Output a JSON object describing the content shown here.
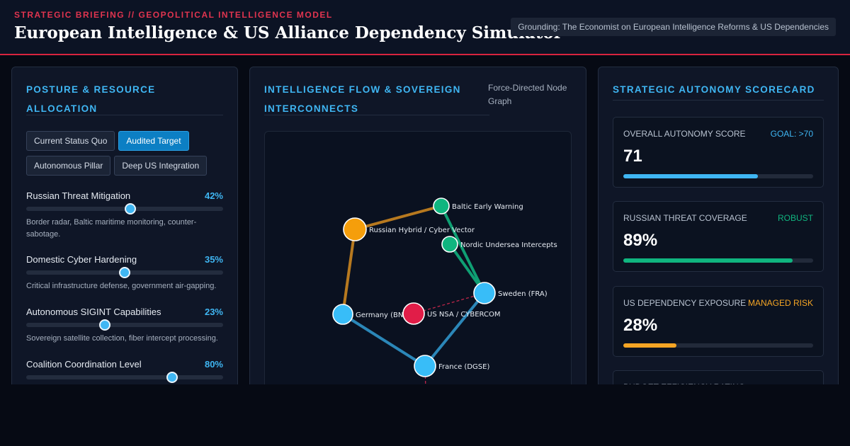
{
  "header": {
    "kicker": "STRATEGIC BRIEFING // GEOPOLITICAL INTELLIGENCE MODEL",
    "title": "European Intelligence & US Alliance Dependency Simulator",
    "grounding": "Grounding: The Economist on European Intelligence Reforms & US Dependencies"
  },
  "posture": {
    "title": "POSTURE & RESOURCE ALLOCATION",
    "scenarios": [
      {
        "label": "Current Status Quo",
        "active": false
      },
      {
        "label": "Audited Target",
        "active": true
      },
      {
        "label": "Autonomous Pillar",
        "active": false
      },
      {
        "label": "Deep US Integration",
        "active": false
      }
    ],
    "sliders": [
      {
        "label": "Russian Threat Mitigation",
        "value_text": "42%",
        "level": 0.53,
        "description": "Border radar, Baltic maritime monitoring, counter-sabotage."
      },
      {
        "label": "Domestic Cyber Hardening",
        "value_text": "35%",
        "level": 0.5,
        "description": "Critical infrastructure defense, government air-gapping."
      },
      {
        "label": "Autonomous SIGINT Capabilities",
        "value_text": "23%",
        "level": 0.4,
        "description": "Sovereign satellite collection, fiber intercept processing."
      },
      {
        "label": "Coalition Coordination Level",
        "value_text": "80%",
        "level": 0.74,
        "description": ""
      }
    ]
  },
  "flow": {
    "title": "INTELLIGENCE FLOW & SOVEREIGN INTERCONNECTS",
    "caption": "Force-Directed Node Graph",
    "nodes": [
      {
        "id": "baltic",
        "label": "Baltic Early Warning",
        "color": "#10b57f"
      },
      {
        "id": "russia",
        "label": "Russian Hybrid / Cyber Vector",
        "color": "#f59e0b"
      },
      {
        "id": "nordic",
        "label": "Nordic Undersea Intercepts",
        "color": "#10b57f"
      },
      {
        "id": "sweden",
        "label": "Sweden (FRA)",
        "color": "#38bdf8"
      },
      {
        "id": "germany",
        "label": "Germany (BND)",
        "color": "#38bdf8"
      },
      {
        "id": "usnsa",
        "label": "US NSA / CYBERCOM",
        "color": "#e11d48"
      },
      {
        "id": "france",
        "label": "France (DGSE)",
        "color": "#38bdf8"
      }
    ],
    "links": [
      {
        "source": "russia",
        "target": "baltic",
        "color": "#b7791f",
        "style": "solid"
      },
      {
        "source": "russia",
        "target": "germany",
        "color": "#b7791f",
        "style": "solid"
      },
      {
        "source": "baltic",
        "target": "sweden",
        "color": "#0f9f73",
        "style": "solid"
      },
      {
        "source": "nordic",
        "target": "sweden",
        "color": "#0f9f73",
        "style": "solid"
      },
      {
        "source": "germany",
        "target": "france",
        "color": "#2b87b8",
        "style": "solid"
      },
      {
        "source": "france",
        "target": "sweden",
        "color": "#2b87b8",
        "style": "solid"
      },
      {
        "source": "usnsa",
        "target": "sweden",
        "color": "#c0264a",
        "style": "dashed"
      },
      {
        "source": "france",
        "target": "offscreen",
        "color": "#c0264a",
        "style": "dashed"
      }
    ]
  },
  "scorecard": {
    "title": "STRATEGIC AUTONOMY SCORECARD",
    "cards": [
      {
        "label": "OVERALL AUTONOMY SCORE",
        "tag": "GOAL: >70",
        "tag_color": "#3fb6f3",
        "value": "71",
        "level": 0.71,
        "bar_color": "#3fb6f3"
      },
      {
        "label": "RUSSIAN THREAT COVERAGE",
        "tag": "ROBUST",
        "tag_color": "#10b57f",
        "value": "89%",
        "level": 0.89,
        "bar_color": "#10b57f"
      },
      {
        "label": "US DEPENDENCY EXPOSURE",
        "tag": "MANAGED RISK",
        "tag_color": "#f5a524",
        "value": "28%",
        "level": 0.28,
        "bar_color": "#f5a524"
      },
      {
        "label": "BUDGET EFFICIENCY RATING",
        "tag": "",
        "tag_color": "#3fb6f3",
        "value": "",
        "level": 0,
        "bar_color": "#3fb6f3"
      }
    ]
  }
}
